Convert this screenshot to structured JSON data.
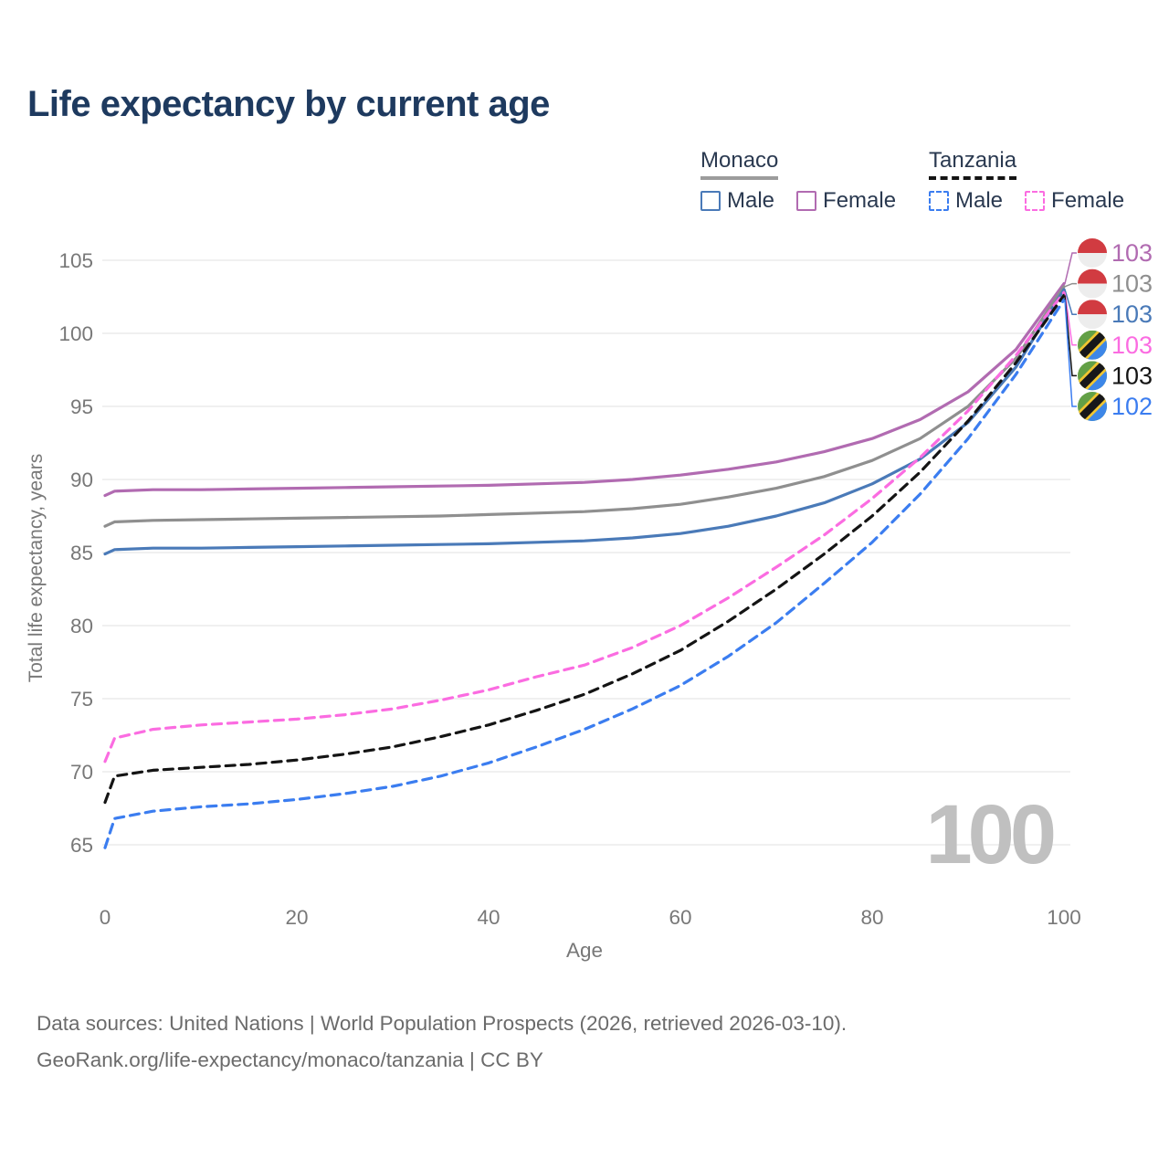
{
  "title": "Life expectancy by current age",
  "legend": {
    "groups": [
      {
        "name": "Monaco",
        "line_style": "solid",
        "line_color": "#9c9c9c",
        "items": [
          {
            "label": "Male",
            "color": "#4a7ab8",
            "dashed": false
          },
          {
            "label": "Female",
            "color": "#b16bb1",
            "dashed": false
          }
        ]
      },
      {
        "name": "Tanzania",
        "line_style": "dashed",
        "line_color": "#141414",
        "items": [
          {
            "label": "Male",
            "color": "#3b7df0",
            "dashed": true
          },
          {
            "label": "Female",
            "color": "#fb6ce1",
            "dashed": true
          }
        ]
      }
    ]
  },
  "chart_data": {
    "type": "line",
    "title": "Life expectancy by current age",
    "xlabel": "Age",
    "ylabel": "Total life expectancy, years",
    "xlim": [
      0,
      100
    ],
    "ylim": [
      63,
      106
    ],
    "xticks": [
      0,
      20,
      40,
      60,
      80,
      100
    ],
    "yticks": [
      65,
      70,
      75,
      80,
      85,
      90,
      95,
      100,
      105
    ],
    "grid": "horizontal-only",
    "legend_position": "top-right",
    "watermark": "100",
    "ages": [
      0,
      1,
      5,
      10,
      15,
      20,
      25,
      30,
      35,
      40,
      45,
      50,
      55,
      60,
      65,
      70,
      75,
      80,
      85,
      90,
      95,
      100
    ],
    "series": [
      {
        "id": "monaco-female",
        "name": "Monaco Female",
        "country": "Monaco",
        "sex": "Female",
        "color": "#b16bb1",
        "dash": "solid",
        "end_label": "103",
        "values": [
          88.9,
          89.2,
          89.3,
          89.3,
          89.35,
          89.4,
          89.45,
          89.5,
          89.55,
          89.6,
          89.7,
          89.8,
          90.0,
          90.3,
          90.7,
          91.2,
          91.9,
          92.8,
          94.1,
          96.0,
          98.9,
          103.4
        ]
      },
      {
        "id": "monaco-total",
        "name": "Monaco Both sexes",
        "country": "Monaco",
        "sex": "Both",
        "color": "#8f8f8f",
        "dash": "solid",
        "end_label": "103",
        "values": [
          86.8,
          87.1,
          87.2,
          87.25,
          87.3,
          87.35,
          87.4,
          87.45,
          87.5,
          87.6,
          87.7,
          87.8,
          88.0,
          88.3,
          88.8,
          89.4,
          90.2,
          91.3,
          92.8,
          95.0,
          98.3,
          103.2
        ]
      },
      {
        "id": "monaco-male",
        "name": "Monaco Male",
        "country": "Monaco",
        "sex": "Male",
        "color": "#4a7ab8",
        "dash": "solid",
        "end_label": "103",
        "values": [
          84.9,
          85.2,
          85.3,
          85.3,
          85.35,
          85.4,
          85.45,
          85.5,
          85.55,
          85.6,
          85.7,
          85.8,
          86.0,
          86.3,
          86.8,
          87.5,
          88.4,
          89.7,
          91.4,
          93.9,
          97.7,
          103.0
        ]
      },
      {
        "id": "tanzania-female",
        "name": "Tanzania Female",
        "country": "Tanzania",
        "sex": "Female",
        "color": "#fb6ce1",
        "dash": "dashed",
        "end_label": "103",
        "values": [
          70.7,
          72.3,
          72.9,
          73.2,
          73.4,
          73.6,
          73.9,
          74.3,
          74.9,
          75.6,
          76.5,
          77.3,
          78.5,
          80.0,
          81.9,
          84.0,
          86.2,
          88.7,
          91.5,
          94.7,
          98.5,
          102.8
        ]
      },
      {
        "id": "tanzania-total",
        "name": "Tanzania Both sexes",
        "country": "Tanzania",
        "sex": "Both",
        "color": "#141414",
        "dash": "dashed",
        "end_label": "103",
        "values": [
          67.9,
          69.7,
          70.1,
          70.3,
          70.5,
          70.8,
          71.2,
          71.7,
          72.4,
          73.2,
          74.2,
          75.3,
          76.7,
          78.3,
          80.3,
          82.5,
          84.9,
          87.5,
          90.5,
          94.0,
          98.0,
          102.6
        ]
      },
      {
        "id": "tanzania-male",
        "name": "Tanzania Male",
        "country": "Tanzania",
        "sex": "Male",
        "color": "#3b7df0",
        "dash": "dashed",
        "end_label": "102",
        "values": [
          64.8,
          66.8,
          67.3,
          67.6,
          67.8,
          68.1,
          68.5,
          69.0,
          69.7,
          70.6,
          71.7,
          72.9,
          74.3,
          75.9,
          77.9,
          80.2,
          82.9,
          85.7,
          89.0,
          92.8,
          97.2,
          102.3
        ]
      }
    ],
    "flag_colors": {
      "monaco": {
        "top": "#d13b41",
        "bottom": "#ededed"
      },
      "tanzania": {
        "green": "#63a046",
        "blue": "#3d87e8",
        "yellow": "#f1c631",
        "black": "#17171a"
      }
    },
    "text_colors": {
      "axis": "#787878",
      "grid": "#e8e8e8",
      "watermark": "#c0c0c0"
    }
  },
  "footer": {
    "line1": "Data sources: United Nations | World Population Prospects (2026, retrieved 2026-03-10).",
    "line2": "GeoRank.org/life-expectancy/monaco/tanzania | CC BY"
  }
}
